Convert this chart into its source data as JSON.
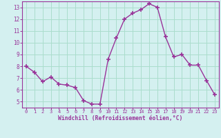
{
  "x": [
    0,
    1,
    2,
    3,
    4,
    5,
    6,
    7,
    8,
    9,
    10,
    11,
    12,
    13,
    14,
    15,
    16,
    17,
    18,
    19,
    20,
    21,
    22,
    23
  ],
  "y": [
    8.0,
    7.5,
    6.7,
    7.1,
    6.5,
    6.4,
    6.2,
    5.1,
    4.8,
    4.8,
    8.6,
    10.4,
    12.0,
    12.5,
    12.8,
    13.3,
    13.0,
    10.5,
    8.8,
    9.0,
    8.1,
    8.1,
    6.8,
    5.6
  ],
  "line_color": "#993399",
  "marker": "+",
  "marker_size": 4,
  "bg_color": "#d4f0f0",
  "grid_color": "#aaddcc",
  "xlabel": "Windchill (Refroidissement éolien,°C)",
  "xlabel_color": "#993399",
  "tick_color": "#993399",
  "ylim": [
    4.5,
    13.5
  ],
  "xlim": [
    -0.5,
    23.5
  ],
  "yticks": [
    5,
    6,
    7,
    8,
    9,
    10,
    11,
    12,
    13
  ],
  "xticks": [
    0,
    1,
    2,
    3,
    4,
    5,
    6,
    7,
    8,
    9,
    10,
    11,
    12,
    13,
    14,
    15,
    16,
    17,
    18,
    19,
    20,
    21,
    22,
    23
  ],
  "spine_color": "#993399",
  "fig_bg_color": "#d4f0f0"
}
